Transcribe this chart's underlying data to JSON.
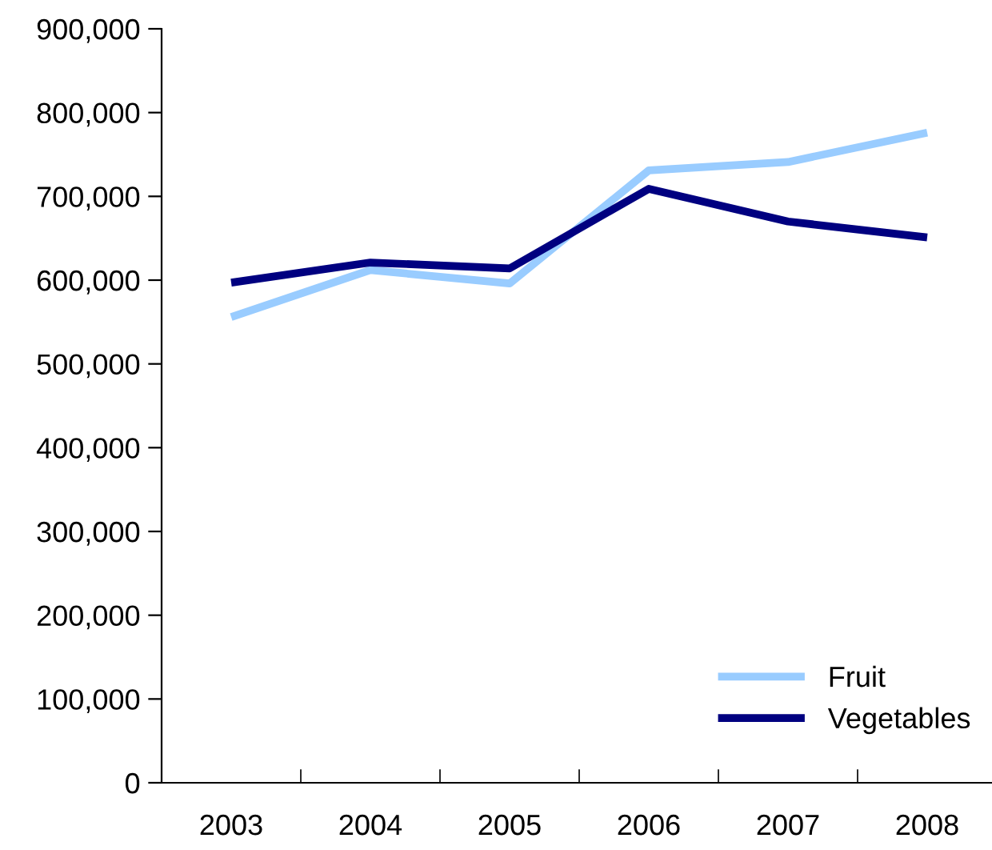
{
  "chart_data": {
    "type": "line",
    "categories": [
      "2003",
      "2004",
      "2005",
      "2006",
      "2007",
      "2008"
    ],
    "series": [
      {
        "name": "Fruit",
        "color": "#99ccff",
        "values": [
          556000,
          612000,
          596000,
          731000,
          741000,
          776000
        ]
      },
      {
        "name": "Vegetables",
        "color": "#000080",
        "values": [
          597000,
          621000,
          614000,
          709000,
          670000,
          651000
        ]
      }
    ],
    "ylim": [
      0,
      900000
    ],
    "yticks": [
      {
        "value": 0,
        "label": "0"
      },
      {
        "value": 100000,
        "label": "100,000"
      },
      {
        "value": 200000,
        "label": "200,000"
      },
      {
        "value": 300000,
        "label": "300,000"
      },
      {
        "value": 400000,
        "label": "400,000"
      },
      {
        "value": 500000,
        "label": "500,000"
      },
      {
        "value": 600000,
        "label": "600,000"
      },
      {
        "value": 700000,
        "label": "700,000"
      },
      {
        "value": 800000,
        "label": "800,000"
      },
      {
        "value": 900000,
        "label": "900,000"
      }
    ],
    "grid": false,
    "legend": "bottom right",
    "marker": "none",
    "line_style": "solid"
  }
}
